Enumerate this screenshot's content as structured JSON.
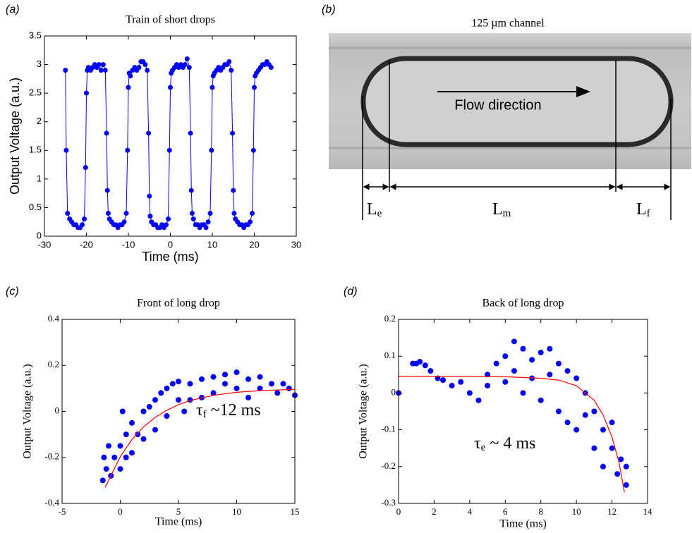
{
  "chart_data": [
    {
      "type": "scatter",
      "panel_label": "(a)",
      "title": "Train of short drops",
      "xlabel": "Time (ms)",
      "ylabel": "Output Voltage (a.u.)",
      "xlim": [
        -30,
        30
      ],
      "xticks": [
        -30,
        -20,
        -10,
        0,
        10,
        20,
        30
      ],
      "ylim": [
        0,
        3.5
      ],
      "yticks": [
        0,
        0.5,
        1,
        1.5,
        2,
        2.5,
        3,
        3.5
      ],
      "series": [
        {
          "color": "#0000ff",
          "style": "line+marker",
          "x": [
            -25,
            -24.8,
            -24.5,
            -24,
            -23.5,
            -23,
            -22.5,
            -22,
            -21.5,
            -21,
            -20.5,
            -20.2,
            -20,
            -19.8,
            -19.5,
            -19,
            -18.5,
            -18,
            -17.5,
            -17,
            -16.5,
            -16,
            -15.5,
            -15.2,
            -15,
            -14.8,
            -14.5,
            -14,
            -13.5,
            -13,
            -12.5,
            -12,
            -11.5,
            -11,
            -10.5,
            -10.2,
            -10,
            -9.8,
            -9.5,
            -9,
            -8.5,
            -8,
            -7.5,
            -7,
            -6.5,
            -6,
            -5.5,
            -5.2,
            -5,
            -4.8,
            -4.5,
            -4,
            -3.5,
            -3,
            -2.5,
            -2,
            -1.5,
            -1,
            -0.5,
            -0.2,
            0,
            0.2,
            0.5,
            1,
            1.5,
            2,
            2.5,
            3,
            3.5,
            4,
            4.5,
            4.8,
            5,
            5.2,
            5.5,
            6,
            6.5,
            7,
            7.5,
            8,
            8.5,
            9,
            9.5,
            9.8,
            10,
            10.2,
            10.5,
            11,
            11.5,
            12,
            12.5,
            13,
            13.5,
            14,
            14.5,
            14.8,
            15,
            15.2,
            15.5,
            16,
            16.5,
            17,
            17.5,
            18,
            18.5,
            19,
            19.5,
            19.8,
            20,
            20.2,
            20.5,
            21,
            21.5,
            22,
            22.5,
            23,
            23.5,
            24
          ],
          "values": [
            2.9,
            1.5,
            0.4,
            0.3,
            0.25,
            0.2,
            0.2,
            0.15,
            0.15,
            0.2,
            0.3,
            1.2,
            2.5,
            2.9,
            2.95,
            2.9,
            2.95,
            3.0,
            2.95,
            3.0,
            2.9,
            3.0,
            2.9,
            1.8,
            0.8,
            0.4,
            0.3,
            0.25,
            0.2,
            0.2,
            0.15,
            0.2,
            0.2,
            0.25,
            0.4,
            1.5,
            2.6,
            2.85,
            2.8,
            2.9,
            2.95,
            2.9,
            2.95,
            3.05,
            3.05,
            3.0,
            2.9,
            1.8,
            0.7,
            0.35,
            0.25,
            0.2,
            0.2,
            0.15,
            0.15,
            0.2,
            0.15,
            0.2,
            0.3,
            1.5,
            2.6,
            2.85,
            2.9,
            2.95,
            3.0,
            2.95,
            3.0,
            2.95,
            3.0,
            3.1,
            2.95,
            1.8,
            0.8,
            0.4,
            0.3,
            0.2,
            0.2,
            0.15,
            0.2,
            0.2,
            0.15,
            0.25,
            0.4,
            1.5,
            2.6,
            2.8,
            2.85,
            2.9,
            2.95,
            2.9,
            2.95,
            3.0,
            3.0,
            3.05,
            2.9,
            1.8,
            0.8,
            0.4,
            0.3,
            0.25,
            0.2,
            0.2,
            0.15,
            0.2,
            0.2,
            0.25,
            0.4,
            1.5,
            2.6,
            2.8,
            2.85,
            2.9,
            2.95,
            3.0,
            3.0,
            3.05,
            3.0,
            2.95
          ]
        }
      ]
    },
    {
      "type": "scatter",
      "panel_label": "(c)",
      "title": "Front of long drop",
      "xlabel": "Time (ms)",
      "ylabel": "Output Voltage (a.u.)",
      "xlim": [
        -5,
        15
      ],
      "xticks": [
        -5,
        0,
        5,
        10,
        15
      ],
      "ylim": [
        -0.4,
        0.4
      ],
      "yticks": [
        -0.4,
        -0.2,
        0,
        0.2,
        0.4
      ],
      "annotation": {
        "main": "τ",
        "sub": "f",
        "text": " ~12 ms"
      },
      "series": [
        {
          "color": "#0000ff",
          "style": "marker",
          "x": [
            -1.5,
            -1.4,
            -1.2,
            -1,
            -0.8,
            -0.5,
            0,
            0,
            0.5,
            0.5,
            1,
            1,
            0.2,
            1.5,
            2,
            2,
            2.5,
            3,
            3,
            3.5,
            4,
            4,
            4.5,
            5,
            5,
            5.5,
            6,
            6,
            7,
            7,
            8,
            8,
            9,
            9,
            10,
            10,
            11,
            11,
            12,
            12,
            13,
            13.5,
            14,
            14.5,
            15
          ],
          "values": [
            -0.3,
            -0.2,
            -0.25,
            -0.15,
            -0.28,
            -0.2,
            -0.15,
            -0.25,
            -0.1,
            -0.2,
            -0.05,
            -0.18,
            0.0,
            -0.1,
            0.0,
            -0.12,
            0.02,
            0.05,
            -0.08,
            0.08,
            0.1,
            -0.02,
            0.12,
            0.05,
            0.13,
            0.0,
            0.12,
            0.05,
            0.14,
            0.06,
            0.15,
            0.08,
            0.12,
            0.16,
            0.1,
            0.17,
            0.14,
            0.06,
            0.15,
            0.1,
            0.12,
            0.08,
            0.12,
            0.1,
            0.07
          ]
        },
        {
          "color": "#ff0000",
          "style": "line",
          "x": [
            -1.3,
            0,
            1,
            2,
            3,
            4,
            5,
            6,
            8,
            10,
            12,
            15
          ],
          "values": [
            -0.33,
            -0.197,
            -0.123,
            -0.067,
            -0.026,
            0.005,
            0.029,
            0.047,
            0.07,
            0.083,
            0.09,
            0.096
          ]
        }
      ]
    },
    {
      "type": "scatter",
      "panel_label": "(d)",
      "title": "Back of long drop",
      "xlabel": "Time (ms)",
      "ylabel": "Output Voltage (a.u.)",
      "xlim": [
        0,
        14
      ],
      "xticks": [
        0,
        2,
        4,
        6,
        8,
        10,
        12,
        14
      ],
      "ylim": [
        -0.3,
        0.2
      ],
      "yticks": [
        -0.3,
        -0.2,
        -0.1,
        0,
        0.1,
        0.2
      ],
      "annotation": {
        "main": "τ",
        "sub": "e",
        "text": " ~ 4 ms"
      },
      "series": [
        {
          "color": "#0000ff",
          "style": "marker",
          "x": [
            0,
            0.8,
            1,
            1.2,
            1.5,
            1.8,
            2.2,
            2.5,
            3,
            3.5,
            4,
            4.5,
            5,
            5,
            5.5,
            6,
            6,
            6.5,
            6.5,
            7,
            7,
            7.5,
            7.5,
            8,
            8,
            8.5,
            8.5,
            9,
            9,
            9.5,
            9.5,
            10,
            10,
            10.5,
            10.5,
            11,
            11,
            11.5,
            11.5,
            12,
            12,
            12.3,
            12.5,
            12.8,
            12.8
          ],
          "values": [
            0,
            0.08,
            0.08,
            0.085,
            0.075,
            0.06,
            0.04,
            0.035,
            0.02,
            0.03,
            0.0,
            -0.02,
            0.02,
            0.05,
            0.08,
            0.1,
            0.03,
            0.14,
            0.06,
            0.12,
            0.0,
            0.09,
            0.04,
            0.11,
            -0.02,
            0.12,
            0.05,
            0.08,
            -0.05,
            0.06,
            -0.08,
            0.04,
            -0.1,
            0.0,
            -0.06,
            -0.05,
            -0.15,
            -0.1,
            -0.2,
            -0.15,
            -0.08,
            -0.22,
            -0.18,
            -0.25,
            -0.2
          ]
        },
        {
          "color": "#ff0000",
          "style": "line",
          "x": [
            0,
            2,
            4,
            6,
            8,
            9,
            10,
            11,
            11.5,
            12,
            12.4,
            12.7
          ],
          "values": [
            0.045,
            0.045,
            0.045,
            0.044,
            0.04,
            0.035,
            0.02,
            -0.02,
            -0.06,
            -0.12,
            -0.19,
            -0.27
          ]
        }
      ]
    }
  ],
  "photo": {
    "panel_label": "(b)",
    "title": "125 µm channel",
    "arrow_label": "Flow direction",
    "dimensions": [
      {
        "main": "L",
        "sub": "e"
      },
      {
        "main": "L",
        "sub": "m"
      },
      {
        "main": "L",
        "sub": "f"
      }
    ]
  }
}
